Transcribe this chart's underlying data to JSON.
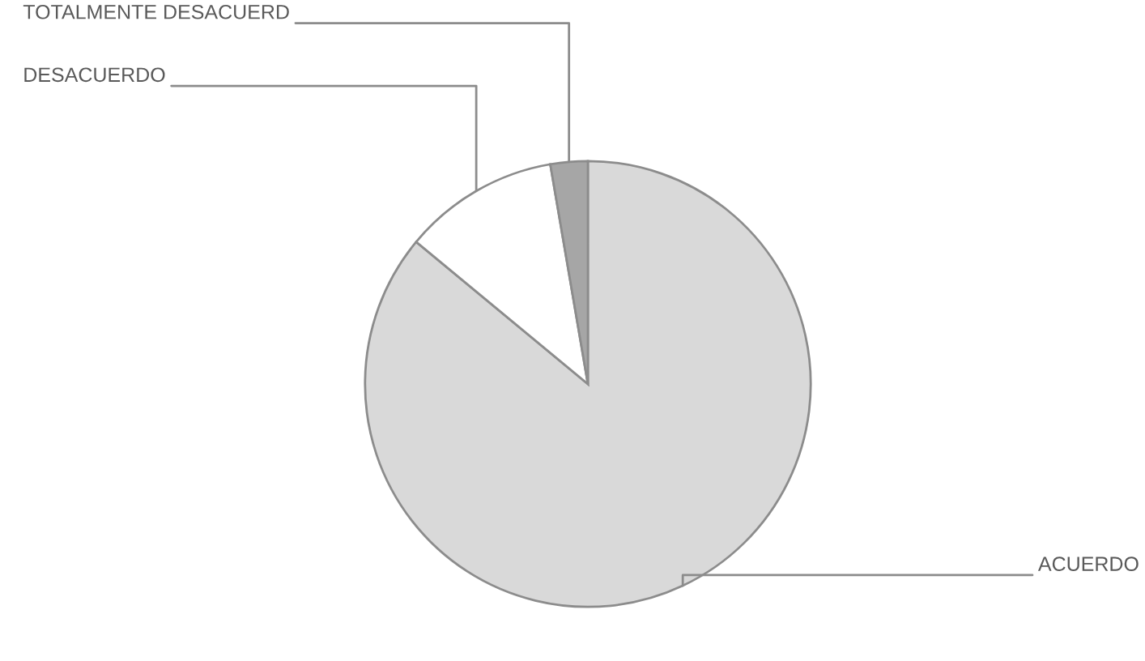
{
  "chart_data": {
    "type": "pie",
    "categories": [
      "ACUERDO",
      "DESACUERDO",
      "TOTALMENTE DESACUERD"
    ],
    "values": [
      86,
      11.3,
      2.7
    ],
    "colors": [
      "#d9d9d9",
      "#ffffff",
      "#a6a6a6"
    ]
  }
}
